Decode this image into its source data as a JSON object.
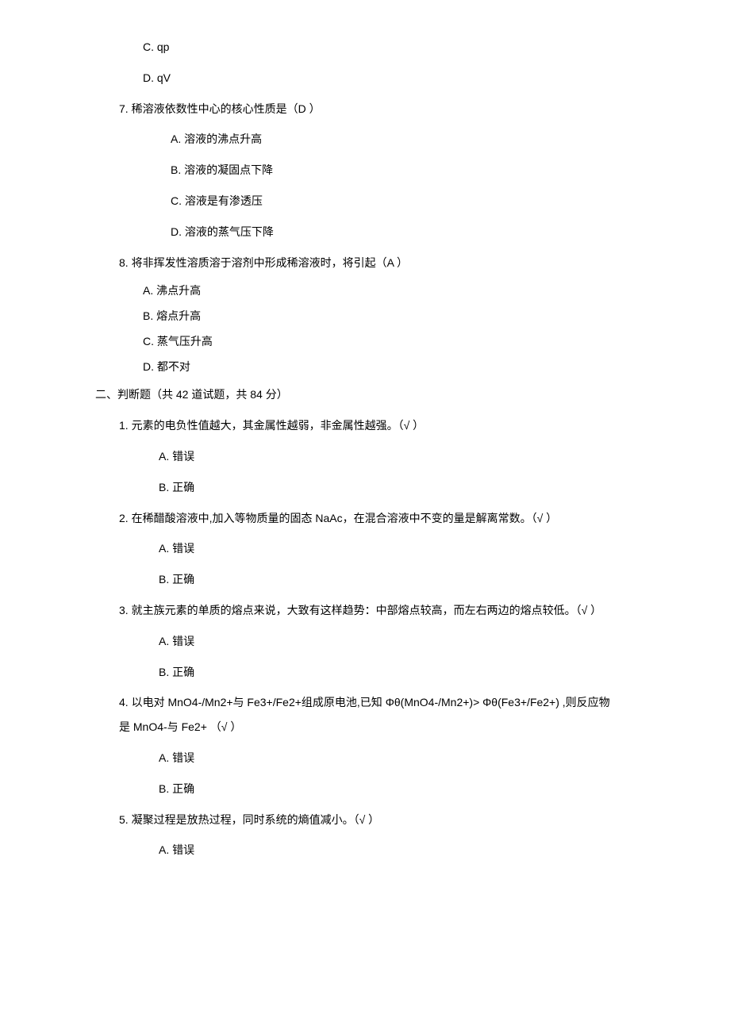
{
  "q6": {
    "optC": "C. qp",
    "optD": "D. qV"
  },
  "q7": {
    "stem": "7. 稀溶液依数性中心的核心性质是（D ）",
    "optA": "A. 溶液的沸点升高",
    "optB": "B. 溶液的凝固点下降",
    "optC": "C. 溶液是有渗透压",
    "optD": "D. 溶液的蒸气压下降"
  },
  "q8": {
    "stem": "8. 将非挥发性溶质溶于溶剂中形成稀溶液时，将引起（A ）",
    "optA": "A. 沸点升高",
    "optB": "B. 熔点升高",
    "optC": "C. 蒸气压升高",
    "optD": "D. 都不对"
  },
  "section2": "二、判断题（共 42 道试题，共 84 分）",
  "tf1": {
    "stem": "1. 元素的电负性值越大，其金属性越弱，非金属性越强。（√ ）",
    "optA": "A. 错误",
    "optB": "B. 正确"
  },
  "tf2": {
    "stem": "2. 在稀醋酸溶液中,加入等物质量的固态 NaAc，在混合溶液中不变的量是解离常数。（√   ）",
    "optA": "A. 错误",
    "optB": "B. 正确"
  },
  "tf3": {
    "stem": "3. 就主族元素的单质的熔点来说，大致有这样趋势：中部熔点较高，而左右两边的熔点较低。（√   ）",
    "optA": "A. 错误",
    "optB": "B. 正确"
  },
  "tf4": {
    "stem": "4. 以电对 MnO4-/Mn2+与 Fe3+/Fe2+组成原电池,已知 Φθ(MnO4-/Mn2+)> Φθ(Fe3+/Fe2+) ,则反应物是 MnO4-与 Fe2+  （√ ）",
    "optA": "A. 错误",
    "optB": "B. 正确"
  },
  "tf5": {
    "stem": "5. 凝聚过程是放热过程，同时系统的熵值减小。（√   ）",
    "optA": "A. 错误"
  }
}
